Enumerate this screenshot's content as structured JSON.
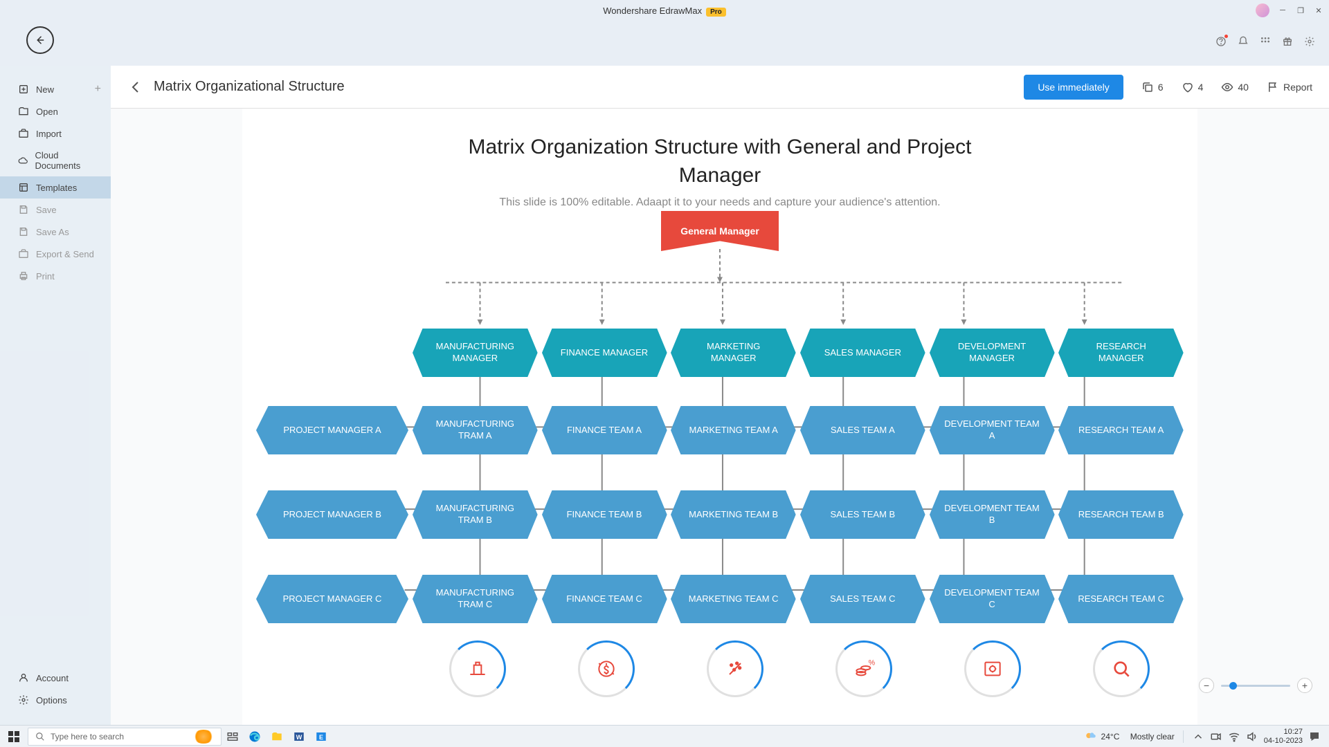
{
  "app": {
    "title": "Wondershare EdrawMax",
    "badge": "Pro"
  },
  "sidebar": {
    "items": [
      {
        "label": "New",
        "icon": "plus-square",
        "hasPlus": true
      },
      {
        "label": "Open",
        "icon": "folder"
      },
      {
        "label": "Import",
        "icon": "briefcase"
      },
      {
        "label": "Cloud Documents",
        "icon": "cloud"
      },
      {
        "label": "Templates",
        "icon": "templates",
        "active": true
      },
      {
        "label": "Save",
        "icon": "save",
        "disabled": true
      },
      {
        "label": "Save As",
        "icon": "save",
        "disabled": true
      },
      {
        "label": "Export & Send",
        "icon": "briefcase",
        "disabled": true
      },
      {
        "label": "Print",
        "icon": "printer",
        "disabled": true
      }
    ],
    "bottom": [
      {
        "label": "Account",
        "icon": "user"
      },
      {
        "label": "Options",
        "icon": "gear"
      }
    ]
  },
  "header": {
    "title": "Matrix Organizational Structure",
    "useBtn": "Use immediately",
    "stats": {
      "copies": "6",
      "likes": "4",
      "views": "40",
      "report": "Report"
    }
  },
  "chart": {
    "title_line1": "Matrix Organization Structure with General and Project",
    "title_line2": "Manager",
    "subtitle": "This slide is 100% editable. Adaapt it to your needs and capture your audience's attention.",
    "top_node": "General Manager",
    "mgr_row": [
      "MANUFACTURING MANAGER",
      "FINANCE MANAGER",
      "MARKETING MANAGER",
      "SALES MANAGER",
      "DEVELOPMENT MANAGER",
      "RESEARCH MANAGER"
    ],
    "pm_labels": [
      "PROJECT MANAGER A",
      "PROJECT MANAGER B",
      "PROJECT MANAGER C"
    ],
    "rows": [
      [
        "MANUFACTURING TRAM A",
        "FINANCE TEAM A",
        "MARKETING TEAM A",
        "SALES TEAM A",
        "DEVELOPMENT TEAM A",
        "RESEARCH TEAM A"
      ],
      [
        "MANUFACTURING TRAM B",
        "FINANCE TEAM B",
        "MARKETING TEAM B",
        "SALES TEAM B",
        "DEVELOPMENT TEAM B",
        "RESEARCH TEAM B"
      ],
      [
        "MANUFACTURING TRAM C",
        "FINANCE TEAM C",
        "MARKETING TEAM C",
        "SALES TEAM C",
        "DEVELOPMENT TEAM C",
        "RESEARCH TEAM C"
      ]
    ],
    "colors": {
      "top": "#e7493c",
      "mgr": "#18a4b8",
      "team": "#4a9ed0"
    }
  },
  "taskbar": {
    "search_placeholder": "Type here to search",
    "weather_temp": "24°C",
    "weather_text": "Mostly clear",
    "time": "10:27",
    "date": "04-10-2023"
  }
}
